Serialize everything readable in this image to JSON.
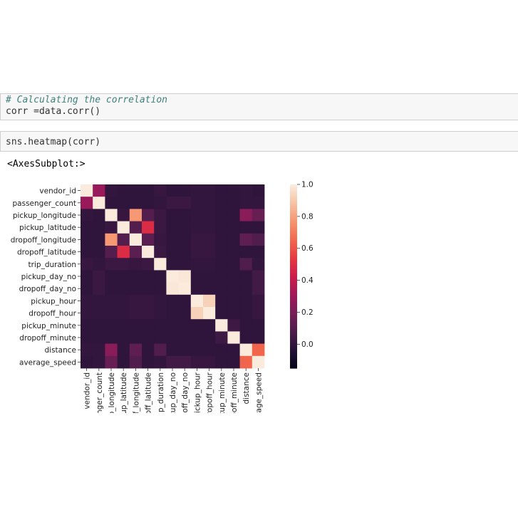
{
  "cells": {
    "cell1": {
      "comment": "# Calculating the correlation",
      "code": "corr =data.corr()"
    },
    "cell2": {
      "code": "sns.heatmap(corr)"
    },
    "output": "<AxesSubplot:>"
  },
  "chart_data": {
    "type": "heatmap",
    "labels": [
      "vendor_id",
      "passenger_count",
      "pickup_longitude",
      "pickup_latitude",
      "dropoff_longitude",
      "dropoff_latitude",
      "trip_duration",
      "pickup_day_no",
      "dropoff_day_no",
      "pickup_hour",
      "dropoff_hour",
      "pickup_minute",
      "dropoff_minute",
      "distance",
      "average_speed"
    ],
    "matrix": [
      [
        1.0,
        0.29,
        0.01,
        0.0,
        0.0,
        0.0,
        0.02,
        0.0,
        0.0,
        0.01,
        0.01,
        0.0,
        0.0,
        0.01,
        0.0
      ],
      [
        0.29,
        1.0,
        0.0,
        0.0,
        0.0,
        0.0,
        0.01,
        0.03,
        0.03,
        0.01,
        0.01,
        0.0,
        0.0,
        0.01,
        0.01
      ],
      [
        0.01,
        0.0,
        1.0,
        0.02,
        0.78,
        0.1,
        0.03,
        0.0,
        0.0,
        0.01,
        0.01,
        0.0,
        0.0,
        0.25,
        0.15
      ],
      [
        0.0,
        0.0,
        0.02,
        1.0,
        0.1,
        0.49,
        0.03,
        0.0,
        0.0,
        0.01,
        0.01,
        0.0,
        0.0,
        0.0,
        0.0
      ],
      [
        0.0,
        0.0,
        0.78,
        0.1,
        1.0,
        0.12,
        0.02,
        0.0,
        0.0,
        0.02,
        0.02,
        0.0,
        0.0,
        0.13,
        0.09
      ],
      [
        0.0,
        0.0,
        0.1,
        0.49,
        0.12,
        1.0,
        0.03,
        0.0,
        0.0,
        0.02,
        0.02,
        0.0,
        0.0,
        0.0,
        0.0
      ],
      [
        0.02,
        0.01,
        0.03,
        0.03,
        0.02,
        0.03,
        1.0,
        0.0,
        0.0,
        0.01,
        0.01,
        0.0,
        0.0,
        0.09,
        0.01
      ],
      [
        0.0,
        0.03,
        0.0,
        0.0,
        0.0,
        0.0,
        0.0,
        1.0,
        0.99,
        0.0,
        0.0,
        0.0,
        0.0,
        0.0,
        0.05
      ],
      [
        0.0,
        0.03,
        0.0,
        0.0,
        0.0,
        0.0,
        0.0,
        0.99,
        1.0,
        0.0,
        0.0,
        0.0,
        0.0,
        0.0,
        0.05
      ],
      [
        0.01,
        0.01,
        0.01,
        0.01,
        0.02,
        0.02,
        0.01,
        0.0,
        0.0,
        1.0,
        0.93,
        0.0,
        0.0,
        0.0,
        0.02
      ],
      [
        0.01,
        0.01,
        0.01,
        0.01,
        0.02,
        0.02,
        0.01,
        0.0,
        0.0,
        0.93,
        1.0,
        0.0,
        0.0,
        0.0,
        0.02
      ],
      [
        0.0,
        0.0,
        0.0,
        0.0,
        0.0,
        0.0,
        0.0,
        0.0,
        0.0,
        0.0,
        0.0,
        1.0,
        0.04,
        0.0,
        0.0
      ],
      [
        0.0,
        0.0,
        0.0,
        0.0,
        0.0,
        0.0,
        0.0,
        0.0,
        0.0,
        0.0,
        0.0,
        0.04,
        1.0,
        0.0,
        0.0
      ],
      [
        0.01,
        0.01,
        0.25,
        0.0,
        0.13,
        0.0,
        0.09,
        0.0,
        0.0,
        0.0,
        0.0,
        0.0,
        0.0,
        1.0,
        0.65
      ],
      [
        0.0,
        0.01,
        0.15,
        0.0,
        0.09,
        0.0,
        0.01,
        0.05,
        0.05,
        0.02,
        0.02,
        0.0,
        0.0,
        0.65,
        1.0
      ]
    ],
    "colorbar": {
      "range": [
        -0.15,
        1.0
      ],
      "ticks": [
        "1.0",
        "0.8",
        "0.6",
        "0.4",
        "0.2",
        "0.0"
      ]
    }
  }
}
